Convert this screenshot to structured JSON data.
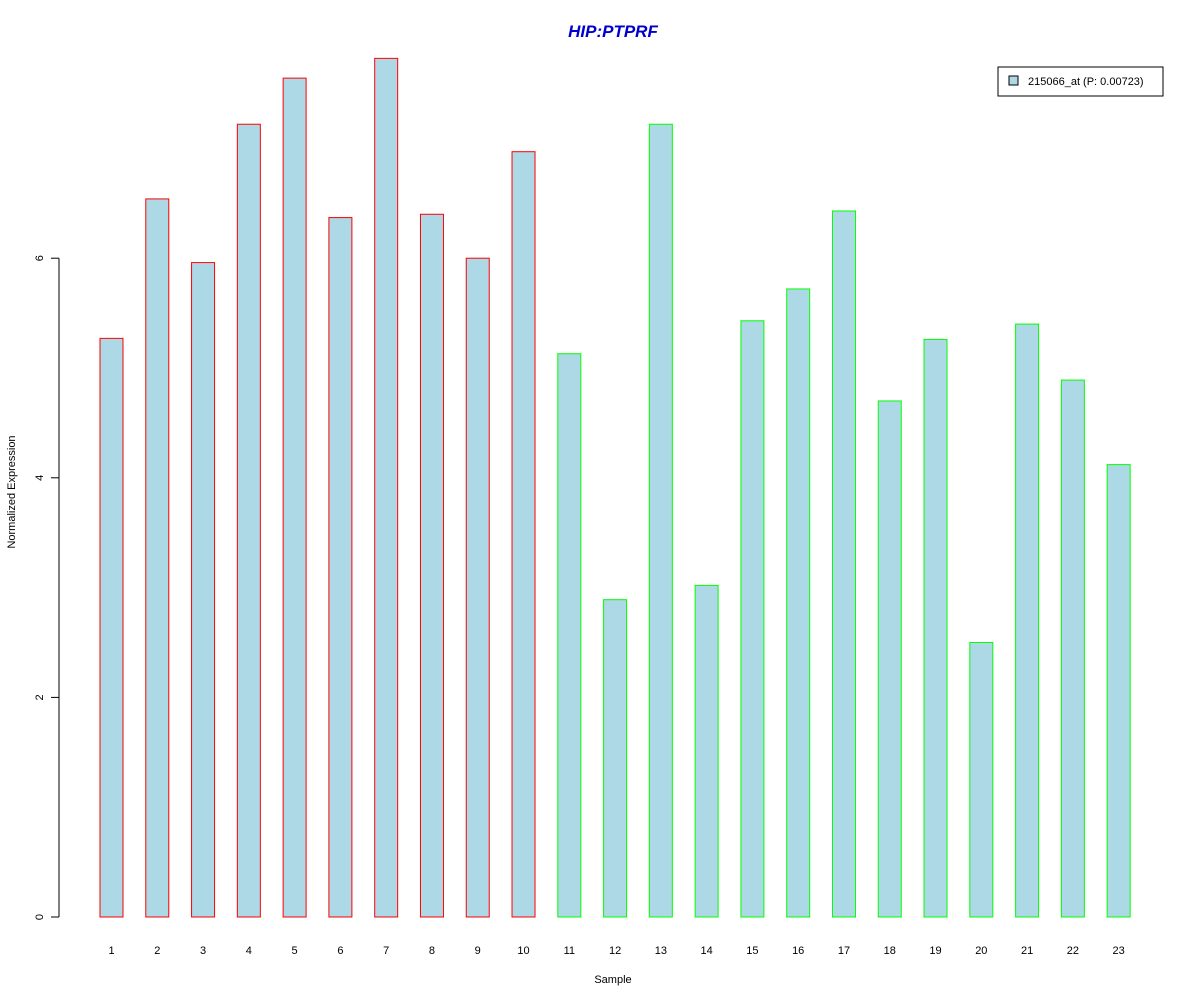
{
  "chart_data": {
    "type": "bar",
    "title": "HIP:PTPRF",
    "title_color": "#0000CC",
    "xlabel": "Sample",
    "ylabel": "Normalized Expression",
    "ylim": [
      0,
      7.8
    ],
    "yticks": [
      0,
      2,
      4,
      6
    ],
    "ytick_labels": [
      "0",
      "2",
      "4",
      "6"
    ],
    "grid": false,
    "categories": [
      "1",
      "2",
      "3",
      "4",
      "5",
      "6",
      "7",
      "8",
      "9",
      "10",
      "11",
      "12",
      "13",
      "14",
      "15",
      "16",
      "17",
      "18",
      "19",
      "20",
      "21",
      "22",
      "23"
    ],
    "series": [
      {
        "name": "215066_at (P: 0.00723)",
        "fill": "#ADD8E6",
        "values": [
          5.27,
          6.54,
          5.96,
          7.22,
          7.64,
          6.37,
          7.82,
          6.4,
          6.0,
          6.97,
          5.13,
          2.89,
          7.22,
          3.02,
          5.43,
          5.72,
          6.43,
          4.7,
          5.26,
          2.5,
          5.4,
          4.89,
          4.12
        ]
      }
    ],
    "border_colors": [
      "#FF0000",
      "#FF0000",
      "#FF0000",
      "#FF0000",
      "#FF0000",
      "#FF0000",
      "#FF0000",
      "#FF0000",
      "#FF0000",
      "#FF0000",
      "#00FF00",
      "#00FF00",
      "#00FF00",
      "#00FF00",
      "#00FF00",
      "#00FF00",
      "#00FF00",
      "#00FF00",
      "#00FF00",
      "#00FF00",
      "#00FF00",
      "#00FF00",
      "#00FF00"
    ],
    "legend": {
      "position": "top-right",
      "label": "215066_at (P: 0.00723)"
    }
  }
}
